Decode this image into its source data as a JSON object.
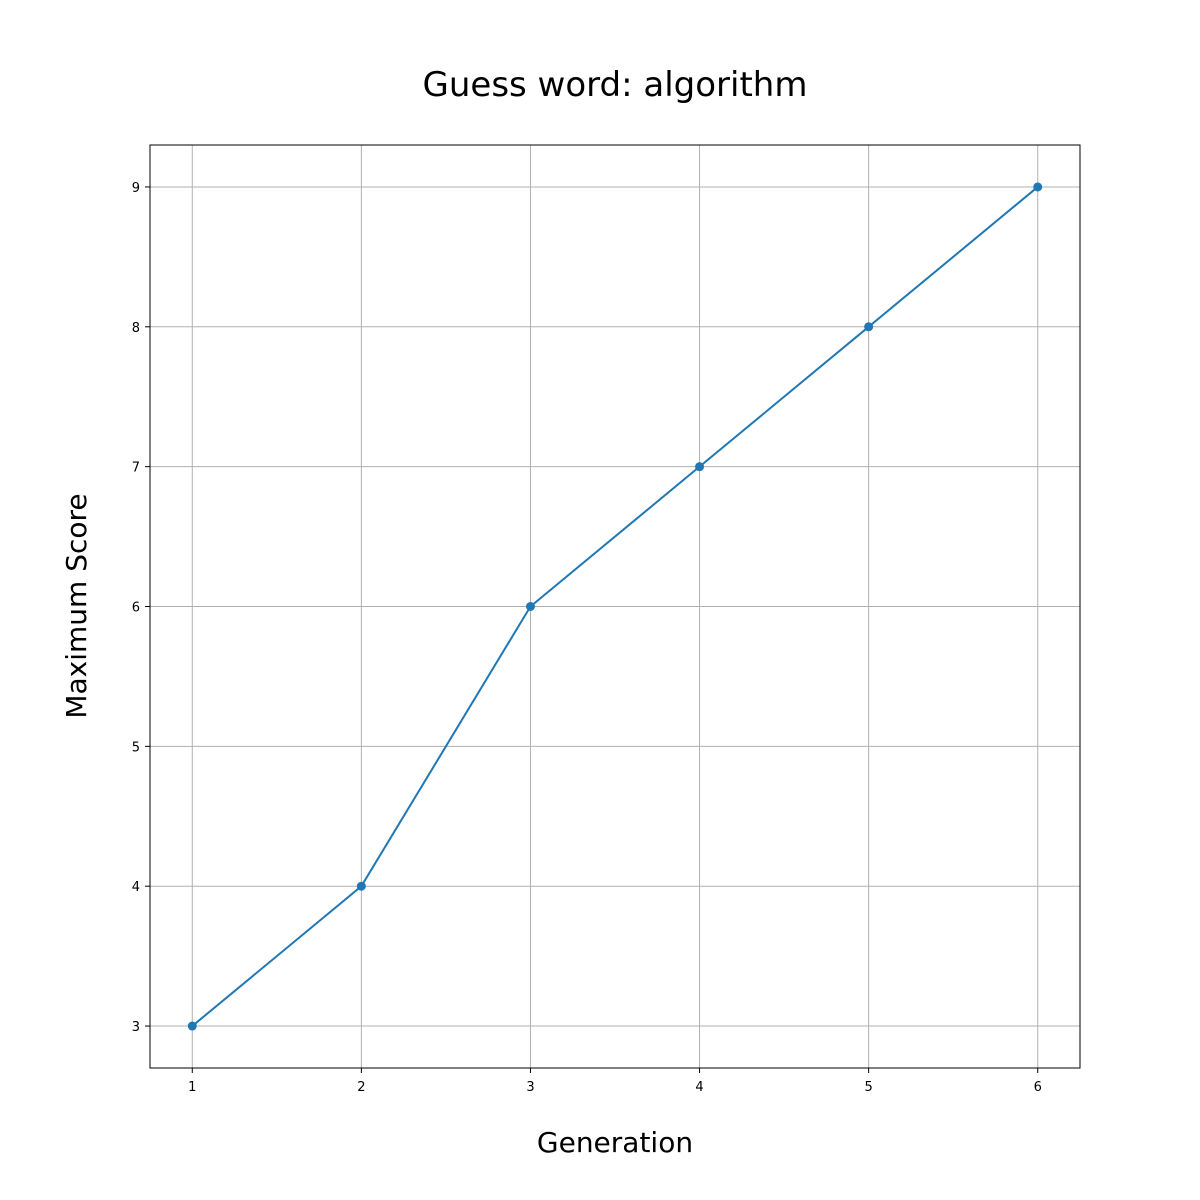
{
  "chart_data": {
    "type": "line",
    "title": "Guess word: algorithm",
    "xlabel": "Generation",
    "ylabel": "Maximum Score",
    "x": [
      1,
      2,
      3,
      4,
      5,
      6
    ],
    "series": [
      {
        "values": [
          3,
          4,
          6,
          7,
          8,
          9
        ],
        "color": "#1f77b4",
        "marker": "circle"
      }
    ],
    "xlim": [
      0.75,
      6.25
    ],
    "ylim": [
      2.7,
      9.3
    ],
    "xticks": [
      1,
      2,
      3,
      4,
      5,
      6
    ],
    "yticks": [
      3,
      4,
      5,
      6,
      7,
      8,
      9
    ],
    "grid": true,
    "legend": "none"
  }
}
